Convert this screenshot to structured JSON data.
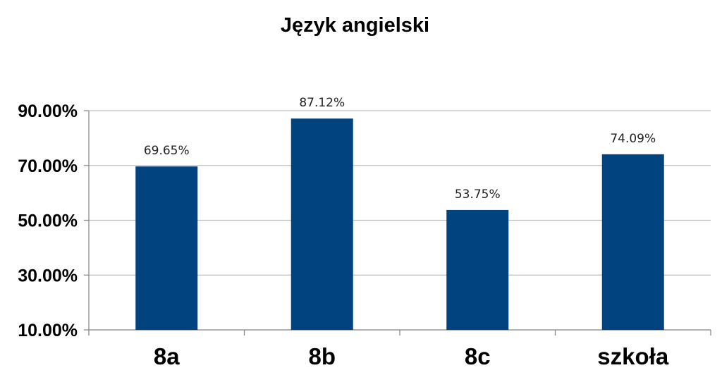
{
  "chart_data": {
    "type": "bar",
    "title": "Język angielski",
    "categories": [
      "8a",
      "8b",
      "8c",
      "szkoła"
    ],
    "series": [
      {
        "values": [
          69.65,
          87.12,
          53.75,
          74.09
        ],
        "data_labels": [
          "69.65%",
          "87.12%",
          "53.75%",
          "74.09%"
        ],
        "color": "#00437f"
      }
    ],
    "y_ticks": [
      10,
      30,
      50,
      70,
      90
    ],
    "y_tick_labels": [
      "10.00%",
      "30.00%",
      "50.00%",
      "70.00%",
      "90.00%"
    ],
    "ylim": [
      10,
      90
    ],
    "xlabel": "",
    "ylabel": "",
    "grid": true,
    "legend": "none"
  }
}
